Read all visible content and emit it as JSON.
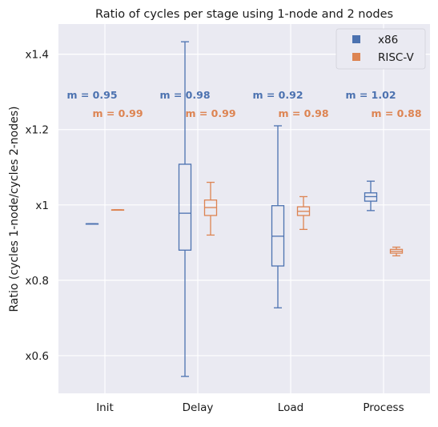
{
  "chart_data": {
    "type": "box",
    "title": "Ratio of cycles per stage using 1-node and 2 nodes",
    "xlabel": "",
    "ylabel": "Ratio (cycles 1-node/cycles 2-nodes)",
    "categories": [
      "Init",
      "Delay",
      "Load",
      "Process"
    ],
    "ylim": [
      0.5,
      1.48
    ],
    "yticks": [
      0.6,
      0.8,
      1.0,
      1.2,
      1.4
    ],
    "ytick_labels": [
      "x0.6",
      "x0.8",
      "x1",
      "x1.2",
      "x1.4"
    ],
    "grid": true,
    "legend_position": "top-right",
    "series": [
      {
        "name": "x86",
        "color": "#4c72b0",
        "boxes": [
          {
            "category": "Init",
            "whislo": 0.95,
            "q1": 0.95,
            "med": 0.95,
            "q3": 0.95,
            "whishi": 0.95,
            "mean_label": "m = 0.95"
          },
          {
            "category": "Delay",
            "whislo": 0.545,
            "q1": 0.88,
            "med": 0.978,
            "q3": 1.108,
            "whishi": 1.433,
            "mean_label": "m = 0.98"
          },
          {
            "category": "Load",
            "whislo": 0.727,
            "q1": 0.838,
            "med": 0.917,
            "q3": 0.998,
            "whishi": 1.21,
            "mean_label": "m = 0.92"
          },
          {
            "category": "Process",
            "whislo": 0.985,
            "q1": 1.01,
            "med": 1.022,
            "q3": 1.032,
            "whishi": 1.063,
            "mean_label": "m = 1.02"
          }
        ]
      },
      {
        "name": "RISC-V",
        "color": "#dd8452",
        "boxes": [
          {
            "category": "Init",
            "whislo": 0.987,
            "q1": 0.987,
            "med": 0.987,
            "q3": 0.987,
            "whishi": 0.987,
            "mean_label": "m = 0.99"
          },
          {
            "category": "Delay",
            "whislo": 0.92,
            "q1": 0.972,
            "med": 0.993,
            "q3": 1.013,
            "whishi": 1.06,
            "mean_label": "m = 0.99"
          },
          {
            "category": "Load",
            "whislo": 0.935,
            "q1": 0.972,
            "med": 0.983,
            "q3": 0.995,
            "whishi": 1.022,
            "mean_label": "m = 0.98"
          },
          {
            "category": "Process",
            "whislo": 0.865,
            "q1": 0.872,
            "med": 0.877,
            "q3": 0.882,
            "whishi": 0.888,
            "mean_label": "m = 0.88"
          }
        ]
      }
    ]
  }
}
